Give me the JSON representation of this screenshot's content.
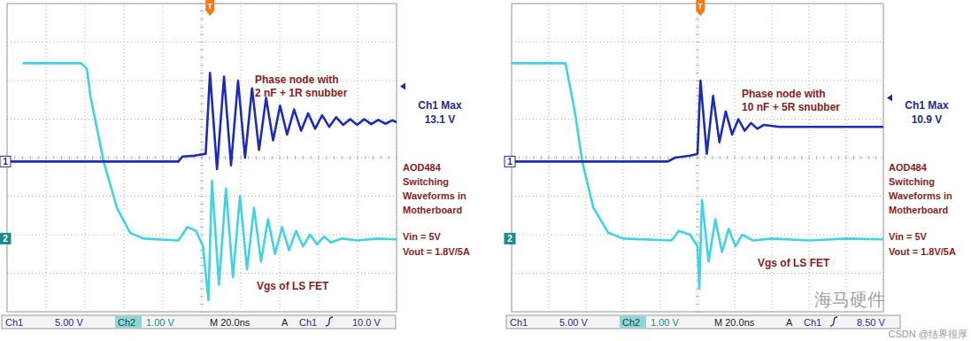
{
  "chart_data": [
    {
      "type": "line",
      "xlim": [
        -5,
        5
      ],
      "ylim": [
        -4,
        4
      ],
      "xticks": [
        -5,
        -4,
        -3,
        -2,
        -1,
        0,
        1,
        2,
        3,
        4,
        5
      ],
      "yticks": [
        -4,
        -3,
        -2,
        -1,
        0,
        1,
        2,
        3,
        4
      ],
      "grid": true,
      "tick_labels": false,
      "trigger_marker": "T",
      "trigger_time": 0.21,
      "trigger_level": 1.85,
      "annotations": {
        "title_lines": [
          "Phase node with",
          "2 nF + 1R snubber"
        ],
        "max_label": "Ch1 Max",
        "max_value": "13.1 V",
        "info_lines": [
          "AOD484",
          "Switching",
          "Waveforms in",
          "Motherboard",
          "Vin = 5V",
          "Vout = 1.8V/5A"
        ],
        "trace_label": "Vgs of LS FET"
      },
      "status": {
        "ch1": "Ch1",
        "ch1_scale": "5.00 V",
        "ch2": "Ch2",
        "ch2_scale": "1.00 V",
        "timebase": "M 20.0ns",
        "acquire": "A",
        "trigger_source": "Ch1",
        "trigger_level": "10.0 V"
      },
      "series": [
        {
          "name": "1",
          "color": "#1c2bb8",
          "ground_level": -0.1,
          "x": [
            -5,
            -0.6,
            -0.5,
            -0.2,
            0.1,
            0.21,
            0.39,
            0.57,
            0.75,
            0.93,
            1.11,
            1.29,
            1.47,
            1.65,
            1.83,
            2.01,
            2.19,
            2.37,
            2.55,
            2.73,
            2.91,
            3.09,
            3.27,
            3.45,
            3.63,
            3.81,
            3.99,
            4.17,
            4.35,
            4.53,
            4.71,
            4.89,
            5
          ],
          "values": [
            -0.1,
            -0.1,
            0.03,
            0.05,
            0.1,
            2.2,
            -0.3,
            2.1,
            -0.2,
            2.0,
            0.0,
            1.8,
            0.2,
            1.55,
            0.45,
            1.35,
            0.6,
            1.25,
            0.7,
            1.15,
            0.75,
            1.1,
            0.8,
            1.05,
            0.85,
            1.0,
            0.85,
            1.0,
            0.87,
            0.98,
            0.88,
            0.97,
            0.92
          ]
        },
        {
          "name": "2",
          "color": "#3fd3e3",
          "ground_level": -2.1,
          "x": [
            -4.6,
            -3.1,
            -2.95,
            -2.86,
            -2.52,
            -2.18,
            -1.84,
            -1.5,
            -0.6,
            -0.37,
            -0.15,
            0.03,
            0.17,
            0.26,
            0.44,
            0.62,
            0.8,
            0.98,
            1.16,
            1.34,
            1.52,
            1.7,
            1.88,
            2.06,
            2.24,
            2.42,
            2.6,
            2.78,
            2.96,
            3.14,
            3.32,
            3.6,
            4.0,
            4.5,
            5
          ],
          "values": [
            2.45,
            2.45,
            2.3,
            1.6,
            -0.1,
            -1.3,
            -1.95,
            -2.1,
            -2.15,
            -1.8,
            -1.9,
            -2.3,
            -3.7,
            -0.6,
            -3.3,
            -0.8,
            -3.1,
            -1.0,
            -2.9,
            -1.3,
            -2.7,
            -1.6,
            -2.5,
            -1.8,
            -2.4,
            -1.9,
            -2.3,
            -2.0,
            -2.25,
            -2.05,
            -2.2,
            -2.1,
            -2.15,
            -2.1,
            -2.12
          ]
        }
      ]
    },
    {
      "type": "line",
      "xlim": [
        -5,
        5
      ],
      "ylim": [
        -4,
        4
      ],
      "xticks": [
        -5,
        -4,
        -3,
        -2,
        -1,
        0,
        1,
        2,
        3,
        4,
        5
      ],
      "yticks": [
        -4,
        -3,
        -2,
        -1,
        0,
        1,
        2,
        3,
        4
      ],
      "grid": true,
      "tick_labels": false,
      "trigger_marker": "T",
      "trigger_time": 0.08,
      "trigger_level": 1.55,
      "annotations": {
        "title_lines": [
          "Phase node with",
          "10 nF + 5R snubber"
        ],
        "max_label": "Ch1 Max",
        "max_value": "10.9 V",
        "info_lines": [
          "AOD484",
          "Switching",
          "Waveforms in",
          "Motherboard",
          "Vin = 5V",
          "Vout = 1.8V/5A"
        ],
        "trace_label": "Vgs of LS FET"
      },
      "status": {
        "ch1": "Ch1",
        "ch1_scale": "5.00 V",
        "ch2": "Ch2",
        "ch2_scale": "1.00 V",
        "timebase": "M 20.0ns",
        "acquire": "A",
        "trigger_source": "Ch1",
        "trigger_level": "8.50 V"
      },
      "series": [
        {
          "name": "1",
          "color": "#1c2bb8",
          "ground_level": -0.1,
          "x": [
            -5,
            -0.8,
            -0.6,
            -0.2,
            0.0,
            0.08,
            0.25,
            0.42,
            0.59,
            0.76,
            0.93,
            1.1,
            1.27,
            1.44,
            1.61,
            1.78,
            2.2,
            3,
            4,
            5
          ],
          "values": [
            -0.1,
            -0.1,
            0.0,
            0.05,
            0.1,
            2.0,
            0.1,
            1.6,
            0.4,
            1.2,
            0.6,
            1.0,
            0.7,
            0.9,
            0.75,
            0.85,
            0.8,
            0.8,
            0.8,
            0.8
          ]
        },
        {
          "name": "2",
          "color": "#3fd3e3",
          "ground_level": -2.1,
          "x": [
            -5,
            -3.55,
            -3.3,
            -3.1,
            -2.8,
            -2.4,
            -2.0,
            -0.7,
            -0.5,
            -0.2,
            0.0,
            0.05,
            0.12,
            0.3,
            0.48,
            0.66,
            0.84,
            1.02,
            1.2,
            1.5,
            2,
            3,
            4,
            5
          ],
          "values": [
            2.45,
            2.45,
            1.2,
            -0.1,
            -1.3,
            -1.95,
            -2.1,
            -2.15,
            -1.9,
            -2.0,
            -2.3,
            -3.4,
            -1.1,
            -2.7,
            -1.6,
            -2.45,
            -1.85,
            -2.3,
            -2.0,
            -2.15,
            -2.1,
            -2.15,
            -2.1,
            -2.12
          ]
        }
      ]
    }
  ],
  "watermark": [
    "海马硬件",
    "CSDN @结界很厚"
  ]
}
